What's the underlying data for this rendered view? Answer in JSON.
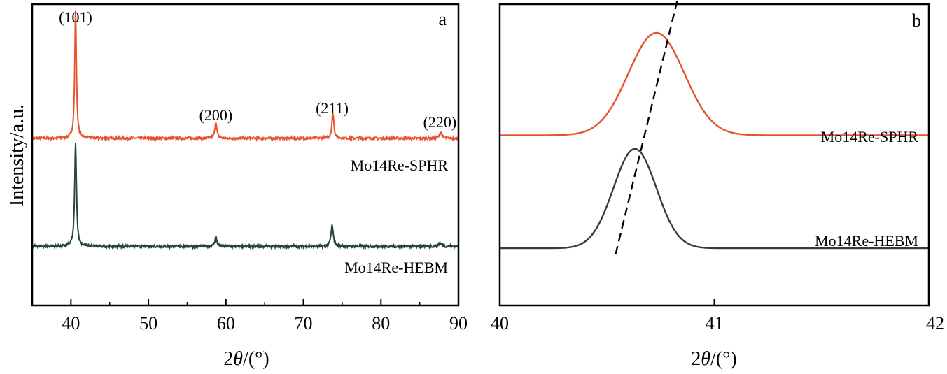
{
  "chart_data": [
    {
      "panel": "a",
      "type": "line",
      "xlabel": "2θ/(°)",
      "xlabel_main": "2",
      "xlabel_theta": "θ",
      "xlabel_unit": "/(°)",
      "ylabel": "Intensity/a.u.",
      "xlim": [
        35,
        90
      ],
      "ylim": [
        0,
        1
      ],
      "x_ticks": [
        "40",
        "50",
        "60",
        "70",
        "80",
        "90"
      ],
      "y_ticks": [],
      "peak_labels": [
        {
          "text": "(101)",
          "x": 40.6
        },
        {
          "text": "(200)",
          "x": 58.7
        },
        {
          "text": "(211)",
          "x": 73.7
        },
        {
          "text": "(220)",
          "x": 87.6
        }
      ],
      "series": [
        {
          "name": "Mo14Re-SPHR",
          "color": "#E8532F",
          "baseline": 0.555,
          "peaks": [
            {
              "center": 40.6,
              "height": 0.42,
              "width": 0.13
            },
            {
              "center": 58.7,
              "height": 0.055,
              "width": 0.15
            },
            {
              "center": 73.8,
              "height": 0.085,
              "width": 0.15
            },
            {
              "center": 87.7,
              "height": 0.02,
              "width": 0.18
            }
          ]
        },
        {
          "name": "Mo14Re-HEBM",
          "color": "#24463A",
          "baseline": 0.196,
          "peaks": [
            {
              "center": 40.6,
              "height": 0.34,
              "width": 0.14
            },
            {
              "center": 58.7,
              "height": 0.032,
              "width": 0.16
            },
            {
              "center": 73.7,
              "height": 0.07,
              "width": 0.17
            },
            {
              "center": 87.6,
              "height": 0.012,
              "width": 0.2
            }
          ]
        }
      ]
    },
    {
      "panel": "b",
      "type": "line",
      "xlabel": "2θ/(°)",
      "xlabel_main": "2",
      "xlabel_theta": "θ",
      "xlabel_unit": "/(°)",
      "xlim": [
        40,
        42
      ],
      "ylim": [
        0,
        1
      ],
      "x_ticks": [
        "40",
        "41",
        "42"
      ],
      "y_ticks": [],
      "series": [
        {
          "name": "Mo14Re-SPHR",
          "color": "#E8532F",
          "baseline": 0.565,
          "peak": {
            "center": 40.73,
            "height": 0.34,
            "sigma": 0.13
          }
        },
        {
          "name": "Mo14Re-HEBM",
          "color": "#3A3A3A",
          "baseline": 0.19,
          "peak": {
            "center": 40.63,
            "height": 0.33,
            "sigma": 0.1
          }
        }
      ],
      "shift_guide": {
        "x1": 40.54,
        "y1": 0.17,
        "x2": 40.83,
        "y2": 1.02,
        "style": "dashed"
      }
    }
  ],
  "panel_letters": [
    "a",
    "b"
  ]
}
